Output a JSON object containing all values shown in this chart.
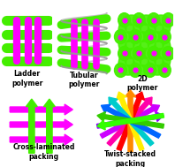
{
  "background_color": "#ffffff",
  "label_fontsize": 5.5,
  "green": "#44ee00",
  "magenta": "#ff00ff",
  "gray": "#999999",
  "labels": {
    "ladder": "Ladder\npolymer",
    "tubular": "Tubular\npolymer",
    "2d": "2D\npolymer",
    "cross": "Cross-laminated\npacking",
    "twist": "Twist-stacked\npacking"
  },
  "twist_colors": [
    "#8800ff",
    "#cc00ff",
    "#ff00aa",
    "#ff0000",
    "#ff8800",
    "#ffee00",
    "#00cccc",
    "#0066ff",
    "#33cc00",
    "#33ff00"
  ]
}
